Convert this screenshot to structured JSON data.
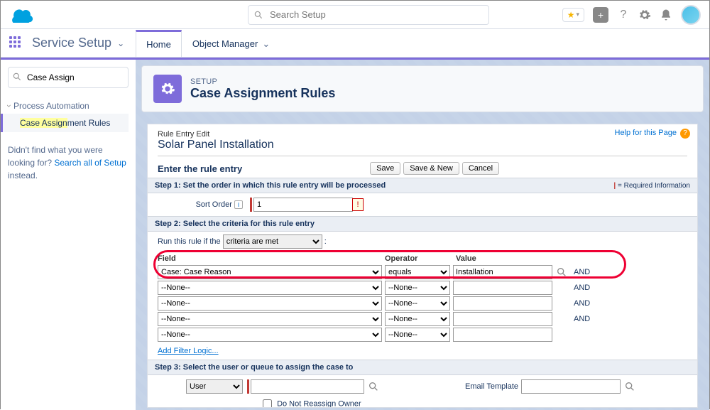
{
  "header": {
    "search_placeholder": "Search Setup"
  },
  "context": {
    "app_name": "Service Setup",
    "tabs": [
      "Home",
      "Object Manager"
    ],
    "active_tab": 0
  },
  "sidebar": {
    "search_value": "Case Assign",
    "category": "Process Automation",
    "item_prefix": "Case Assign",
    "item_suffix": "ment Rules",
    "help_pre": "Didn't find what you were looking for? ",
    "help_link": "Search all of Setup",
    "help_post": " instead."
  },
  "page": {
    "eyebrow": "SETUP",
    "title": "Case Assignment Rules",
    "help_link": "Help for this Page",
    "breadcrumb": "Rule Entry Edit",
    "subtitle": "Solar Panel Installation"
  },
  "entry": {
    "label": "Enter the rule entry",
    "buttons": {
      "save": "Save",
      "save_new": "Save & New",
      "cancel": "Cancel"
    }
  },
  "step1": {
    "heading_num": "Step 1:",
    "heading_text": " Set the order in which this rule entry will be processed",
    "required_label": "= Required Information",
    "sort_label": "Sort Order",
    "sort_value": "1"
  },
  "step2": {
    "heading_num": "Step 2:",
    "heading_text": " Select the criteria for this rule entry",
    "run_label": "Run this rule if the",
    "run_value": "criteria are met",
    "cols": {
      "field": "Field",
      "operator": "Operator",
      "value": "Value"
    },
    "rows": [
      {
        "field": "Case: Case Reason",
        "op": "equals",
        "val": "Installation",
        "and": "AND"
      },
      {
        "field": "--None--",
        "op": "--None--",
        "val": "",
        "and": "AND"
      },
      {
        "field": "--None--",
        "op": "--None--",
        "val": "",
        "and": "AND"
      },
      {
        "field": "--None--",
        "op": "--None--",
        "val": "",
        "and": "AND"
      },
      {
        "field": "--None--",
        "op": "--None--",
        "val": "",
        "and": ""
      }
    ],
    "add_filter": "Add Filter Logic..."
  },
  "step3": {
    "heading_num": "Step 3:",
    "heading_text": " Select the user or queue to assign the case to",
    "type_value": "User",
    "email_label": "Email Template",
    "reassign_label": "Do Not Reassign Owner"
  }
}
